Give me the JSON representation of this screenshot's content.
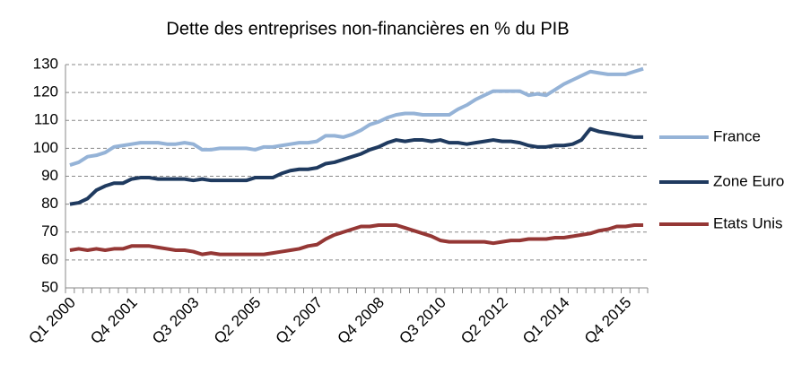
{
  "chart_data": {
    "type": "line",
    "title": "Dette des entreprises non-financières en % du PIB",
    "categories": [
      "Q1 2000",
      null,
      null,
      null,
      null,
      null,
      null,
      "Q4 2001",
      null,
      null,
      null,
      null,
      null,
      null,
      "Q3 2003",
      null,
      null,
      null,
      null,
      null,
      null,
      "Q2 2005",
      null,
      null,
      null,
      null,
      null,
      null,
      "Q1 2007",
      null,
      null,
      null,
      null,
      null,
      null,
      "Q4 2008",
      null,
      null,
      null,
      null,
      null,
      null,
      "Q3 2010",
      null,
      null,
      null,
      null,
      null,
      null,
      "Q2 2012",
      null,
      null,
      null,
      null,
      null,
      null,
      "Q1 2014",
      null,
      null,
      null,
      null,
      null,
      null,
      "Q4 2015",
      null,
      null
    ],
    "series": [
      {
        "name": "France",
        "color": "#95b3d7",
        "values": [
          94,
          95,
          97,
          97.5,
          98.5,
          100.5,
          101,
          101.5,
          102,
          102,
          102,
          101.5,
          101.5,
          102,
          101.5,
          99.5,
          99.5,
          100,
          100,
          100,
          100,
          99.5,
          100.5,
          100.5,
          101,
          101.5,
          102,
          102,
          102.5,
          104.5,
          104.5,
          104,
          105,
          106.5,
          108.5,
          109.5,
          111,
          112,
          112.5,
          112.5,
          112,
          112,
          112,
          112,
          114,
          115.5,
          117.5,
          119,
          120.5,
          120.5,
          120.5,
          120.5,
          119,
          119.5,
          119,
          121,
          123,
          124.5,
          126,
          127.5,
          127,
          126.5,
          126.5,
          126.5,
          127.5,
          128.5
        ]
      },
      {
        "name": "Zone Euro",
        "color": "#1f3a5f",
        "values": [
          80,
          80.5,
          82,
          85,
          86.5,
          87.5,
          87.5,
          89,
          89.5,
          89.5,
          89,
          89,
          89,
          89,
          88.5,
          89,
          88.5,
          88.5,
          88.5,
          88.5,
          88.5,
          89.5,
          89.5,
          89.5,
          91,
          92,
          92.5,
          92.5,
          93,
          94.5,
          95,
          96,
          97,
          98,
          99.5,
          100.5,
          102,
          103,
          102.5,
          103,
          103,
          102.5,
          103,
          102,
          102,
          101.5,
          102,
          102.5,
          103,
          102.5,
          102.5,
          102,
          101,
          100.5,
          100.5,
          101,
          101,
          101.5,
          103,
          107,
          106,
          105.5,
          105,
          104.5,
          104,
          104
        ]
      },
      {
        "name": "Etats Unis",
        "color": "#953735",
        "values": [
          63.5,
          64,
          63.5,
          64,
          63.5,
          64,
          64,
          65,
          65,
          65,
          64.5,
          64,
          63.5,
          63.5,
          63,
          62,
          62.5,
          62,
          62,
          62,
          62,
          62,
          62,
          62.5,
          63,
          63.5,
          64,
          65,
          65.5,
          67.5,
          69,
          70,
          71,
          72,
          72,
          72.5,
          72.5,
          72.5,
          71.5,
          70.5,
          69.5,
          68.5,
          67,
          66.5,
          66.5,
          66.5,
          66.5,
          66.5,
          66,
          66.5,
          67,
          67,
          67.5,
          67.5,
          67.5,
          68,
          68,
          68.5,
          69,
          69.5,
          70.5,
          71,
          72,
          72,
          72.5,
          72.5
        ]
      }
    ],
    "ylim": [
      50,
      130
    ],
    "yticks": [
      50,
      60,
      70,
      80,
      90,
      100,
      110,
      120,
      130
    ],
    "grid": true
  }
}
